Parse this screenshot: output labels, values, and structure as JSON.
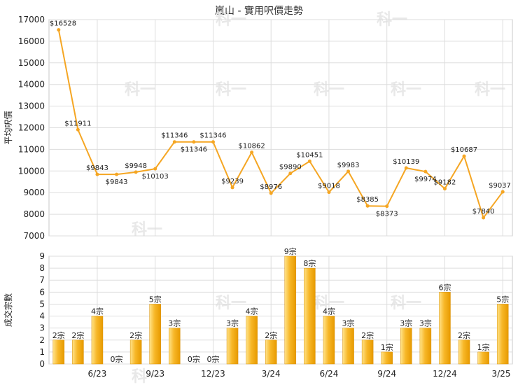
{
  "title": "嵐山 - 實用呎價走勢",
  "watermark": "科一",
  "colors": {
    "line": "#f5a623",
    "bar_light": "#ffe38a",
    "bar_dark": "#e79a00",
    "grid": "#dddddd"
  },
  "chart_data": [
    {
      "type": "line",
      "ylabel": "平均呎價",
      "ylim": [
        7000,
        17000
      ],
      "yticks": [
        7000,
        8000,
        9000,
        10000,
        11000,
        12000,
        13000,
        14000,
        15000,
        16000,
        17000
      ],
      "values": [
        16528,
        11911,
        9843,
        9843,
        9948,
        10103,
        11346,
        11346,
        11346,
        9239,
        10862,
        8976,
        9890,
        10451,
        9018,
        9983,
        8385,
        8373,
        10139,
        9974,
        9182,
        10687,
        7840,
        9037
      ],
      "labels": [
        "$16528",
        "$11911",
        "$9843",
        "$9843",
        "$9948",
        "$10103",
        "$11346",
        "$11346",
        "$11346",
        "$9239",
        "$10862",
        "$8976",
        "$9890",
        "$10451",
        "$9018",
        "$9983",
        "$8385",
        "$8373",
        "$10139",
        "$9974",
        "$9182",
        "$10687",
        "$7840",
        "$9037"
      ],
      "grid": true
    },
    {
      "type": "bar",
      "ylabel": "成交宗數",
      "ylim": [
        0,
        9
      ],
      "yticks": [
        0,
        1,
        2,
        3,
        4,
        5,
        6,
        7,
        8,
        9
      ],
      "values": [
        2,
        2,
        4,
        0,
        2,
        5,
        3,
        0,
        0,
        3,
        4,
        2,
        9,
        8,
        4,
        3,
        2,
        1,
        3,
        3,
        6,
        2,
        1,
        5
      ],
      "labels": [
        "2宗",
        "2宗",
        "4宗",
        "0宗",
        "2宗",
        "5宗",
        "3宗",
        "0宗",
        "0宗",
        "3宗",
        "4宗",
        "2宗",
        "9宗",
        "8宗",
        "4宗",
        "3宗",
        "2宗",
        "1宗",
        "3宗",
        "3宗",
        "6宗",
        "2宗",
        "1宗",
        "5宗"
      ],
      "x_tick_labels": [
        {
          "index": 2,
          "label": "6/23"
        },
        {
          "index": 5,
          "label": "9/23"
        },
        {
          "index": 8,
          "label": "12/23"
        },
        {
          "index": 11,
          "label": "3/24"
        },
        {
          "index": 14,
          "label": "6/24"
        },
        {
          "index": 17,
          "label": "9/24"
        },
        {
          "index": 20,
          "label": "12/24"
        },
        {
          "index": 23,
          "label": "3/25"
        }
      ],
      "grid": true
    }
  ]
}
